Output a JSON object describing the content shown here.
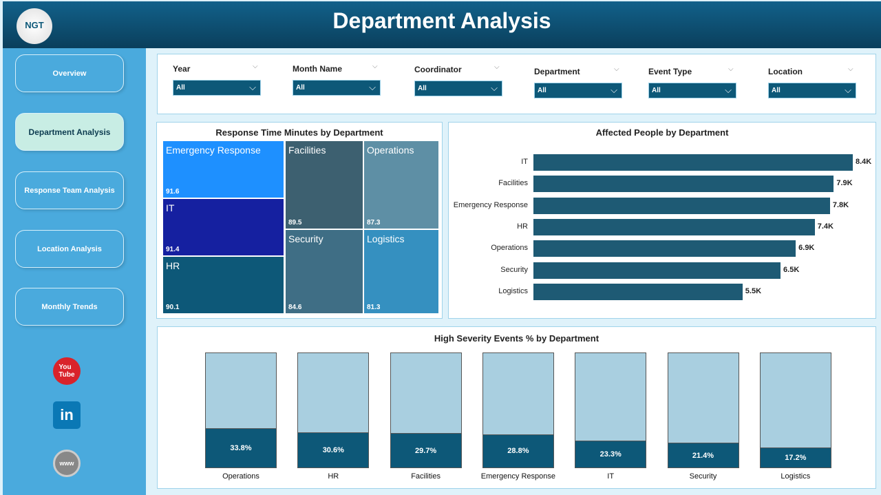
{
  "header": {
    "title": "Department Analysis",
    "logo_text": "NGT"
  },
  "sidebar": {
    "items": [
      {
        "label": "Overview"
      },
      {
        "label": "Department Analysis",
        "active": true
      },
      {
        "label": "Response Team Analysis"
      },
      {
        "label": "Location Analysis"
      },
      {
        "label": "Monthly Trends"
      }
    ],
    "social": [
      "youtube-icon",
      "linkedin-icon",
      "web-icon"
    ]
  },
  "filters": [
    {
      "label": "Year",
      "value": "All"
    },
    {
      "label": "Month Name",
      "value": "All"
    },
    {
      "label": "Coordinator",
      "value": "All"
    },
    {
      "label": "Department",
      "value": "All"
    },
    {
      "label": "Event Type",
      "value": "All"
    },
    {
      "label": "Location",
      "value": "All"
    }
  ],
  "chart_data": [
    {
      "type": "treemap",
      "title": "Response Time Minutes by Department",
      "items": [
        {
          "name": "Emergency Response",
          "value": 91.6,
          "color": "#1e90ff"
        },
        {
          "name": "IT",
          "value": 91.4,
          "color": "#1520a0"
        },
        {
          "name": "HR",
          "value": 90.1,
          "color": "#0d5878"
        },
        {
          "name": "Facilities",
          "value": 89.5,
          "color": "#3d6070"
        },
        {
          "name": "Operations",
          "value": 87.3,
          "color": "#5e8fa5"
        },
        {
          "name": "Security",
          "value": 84.6,
          "color": "#3f6e85"
        },
        {
          "name": "Logistics",
          "value": 81.3,
          "color": "#3590c0"
        }
      ]
    },
    {
      "type": "bar",
      "orientation": "horizontal",
      "title": "Affected People by Department",
      "categories": [
        "IT",
        "Facilities",
        "Emergency Response",
        "HR",
        "Operations",
        "Security",
        "Logistics"
      ],
      "values": [
        8400,
        7900,
        7800,
        7400,
        6900,
        6500,
        5500
      ],
      "labels": [
        "8.4K",
        "7.9K",
        "7.8K",
        "7.4K",
        "6.9K",
        "6.5K",
        "5.5K"
      ],
      "color": "#1e5a74"
    },
    {
      "type": "bar",
      "title": "High Severity Events % by Department",
      "categories": [
        "Operations",
        "HR",
        "Facilities",
        "Emergency Response",
        "IT",
        "Security",
        "Logistics"
      ],
      "values": [
        33.8,
        30.6,
        29.7,
        28.8,
        23.3,
        21.4,
        17.2
      ],
      "labels": [
        "33.8%",
        "30.6%",
        "29.7%",
        "28.8%",
        "23.3%",
        "21.4%",
        "17.2%"
      ],
      "ylim": [
        0,
        100
      ],
      "color": "#0d5878",
      "background_color": "#a9cfe0"
    }
  ]
}
